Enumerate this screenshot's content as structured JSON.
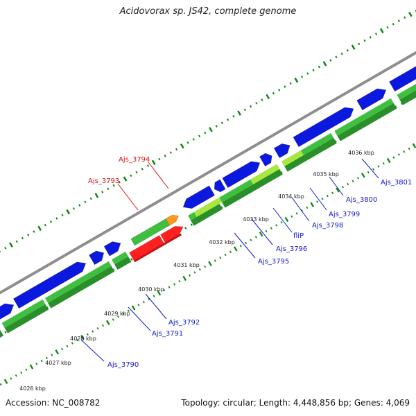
{
  "title": "Acidovorax sp. JS42, complete genome",
  "footer": {
    "accession": "Accession: NC_008782",
    "summary": "Topology: circular; Length: 4,448,856 bp; Genes: 4,069"
  },
  "colors": {
    "backbone": "#8e8e8e",
    "cds_blue": "#0b18dd",
    "gene_green": "#3fbf3f",
    "gene_dark_green": "#2a8f2a",
    "gene_light_green": "#a8e640",
    "gene_red": "#ff2020",
    "gene_orange": "#ff9a1a",
    "label_blue": "#1018cc",
    "label_red": "#dd1111",
    "tick_green": "#118811"
  },
  "scale_labels": [
    "4026 kbp",
    "4027 kbp",
    "4028 kbp",
    "4029 kbp",
    "4030 kbp",
    "4031 kbp",
    "4032 kbp",
    "4033 kbp",
    "4034 kbp",
    "4035 kbp",
    "4036 kbp"
  ],
  "gene_labels": [
    {
      "text": "Ajs_3790",
      "color": "blue"
    },
    {
      "text": "Ajs_3791",
      "color": "blue"
    },
    {
      "text": "Ajs_3792",
      "color": "blue"
    },
    {
      "text": "Ajs_3793",
      "color": "red"
    },
    {
      "text": "Ajs_3794",
      "color": "red"
    },
    {
      "text": "Ajs_3795",
      "color": "blue"
    },
    {
      "text": "Ajs_3796",
      "color": "blue"
    },
    {
      "text": "fliP",
      "color": "blue"
    },
    {
      "text": "Ajs_3798",
      "color": "blue"
    },
    {
      "text": "Ajs_3799",
      "color": "blue"
    },
    {
      "text": "Ajs_3800",
      "color": "blue"
    },
    {
      "text": "Ajs_3801",
      "color": "blue"
    }
  ]
}
